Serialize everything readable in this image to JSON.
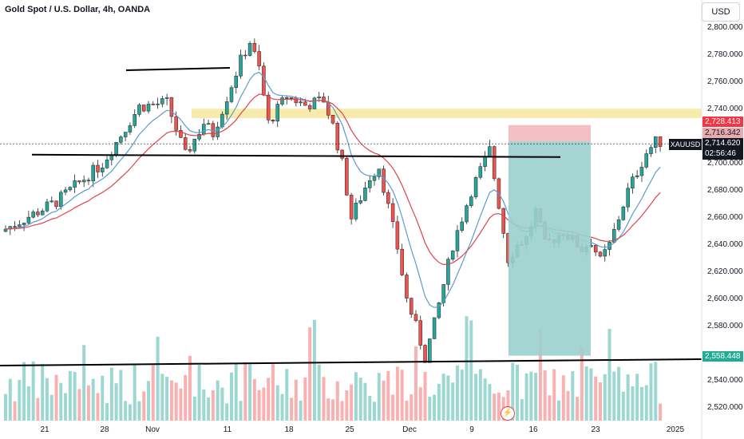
{
  "header": {
    "title": "Gold Spot / U.S. Dollar, 4h, OANDA",
    "currency_button": "USD"
  },
  "price_axis": {
    "labels": [
      "2,800.000",
      "2,780.000",
      "2,760.000",
      "2,740.000",
      "2,700.000",
      "2,680.000",
      "2,660.000",
      "2,640.000",
      "2,620.000",
      "2,600.000",
      "2,580.000",
      "2,540.000",
      "2,520.000"
    ],
    "tags": {
      "stop": "2,728.413",
      "entry": "2,716.342",
      "target": "2,558.448"
    },
    "current": {
      "symbol": "XAUUSD",
      "price": "2,714.620",
      "countdown": "02:56:46"
    }
  },
  "time_axis": {
    "labels": [
      "21",
      "28",
      "Nov",
      "11",
      "18",
      "25",
      "Dec",
      "9",
      "16",
      "23",
      "2025"
    ]
  },
  "colors": {
    "up": "#26a69a",
    "down": "#ef5350",
    "ema_fast": "#5b9bd5",
    "ema_slow": "#e0434b",
    "zone": "#f5e79e",
    "risk": "#f2b8bc",
    "reward": "#9bd0cd",
    "line": "#000000"
  },
  "icons": {
    "flash": "lightning-icon"
  },
  "chart_data": {
    "type": "candlestick",
    "title": "Gold Spot / U.S. Dollar, 4h, OANDA",
    "ylim": [
      2515,
      2815
    ],
    "price_path": [
      [
        0,
        2650
      ],
      [
        6,
        2672
      ],
      [
        11,
        2700
      ],
      [
        15,
        2742
      ],
      [
        18,
        2745
      ],
      [
        20,
        2706
      ],
      [
        22,
        2730
      ],
      [
        23,
        2722
      ],
      [
        26,
        2776
      ],
      [
        27,
        2790
      ],
      [
        28,
        2770
      ],
      [
        29,
        2730
      ],
      [
        31,
        2750
      ],
      [
        33,
        2743
      ],
      [
        35,
        2747
      ],
      [
        36,
        2728
      ],
      [
        37,
        2700
      ],
      [
        38,
        2660
      ],
      [
        40,
        2690
      ],
      [
        41,
        2698
      ],
      [
        43,
        2638
      ],
      [
        44,
        2600
      ],
      [
        45,
        2580
      ],
      [
        46,
        2557
      ],
      [
        47,
        2582
      ],
      [
        49,
        2640
      ],
      [
        51,
        2680
      ],
      [
        53,
        2710
      ],
      [
        54,
        2670
      ],
      [
        55,
        2630
      ],
      [
        56,
        2640
      ],
      [
        57,
        2645
      ],
      [
        58,
        2665
      ],
      [
        59,
        2640
      ],
      [
        61,
        2650
      ],
      [
        63,
        2637
      ],
      [
        64,
        2643
      ],
      [
        65,
        2628
      ],
      [
        66,
        2640
      ],
      [
        68,
        2680
      ],
      [
        70,
        2708
      ],
      [
        71,
        2716
      ]
    ],
    "levels": [
      {
        "label": "resistance zone",
        "price": 2737
      },
      {
        "label": "support",
        "price": 2706
      }
    ],
    "short_position": {
      "entry": 2716.342,
      "stop": 2728.413,
      "target": 2558.448
    },
    "current_price": 2714.62
  }
}
